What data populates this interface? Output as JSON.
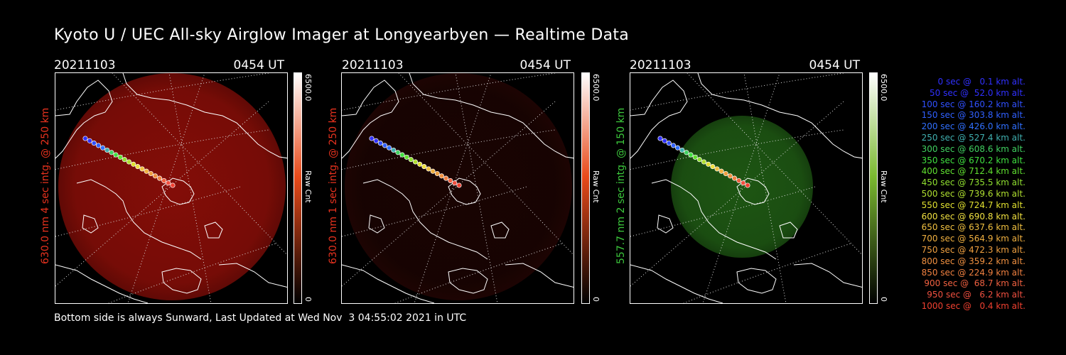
{
  "title": "Kyoto U / UEC All-sky Airglow Imager at Longyearbyen — Realtime Data",
  "footer": "Bottom side is always Sunward, Last Updated at Wed Nov  3 04:55:02 2021 in UTC",
  "panels": [
    {
      "date": "20211103",
      "time": "0454 UT",
      "ylabel": "630.0 nm 4 sec intg. @ 250 km",
      "ylabel_color": "#e8321e",
      "colorbar_max": "6500.0",
      "colorbar_min": "0",
      "colorbar_unit": "Raw Cnt",
      "colormap_top": "#ffffff",
      "colormap_mid": "#e84a1a",
      "colormap_bottom": "#000000",
      "disk_color": "#8a0e08",
      "disk_brightness": 0.95
    },
    {
      "date": "20211103",
      "time": "0454 UT",
      "ylabel": "630.0 nm 1 sec intg. @ 250 km",
      "ylabel_color": "#e8321e",
      "colorbar_max": "6500.0",
      "colorbar_min": "0",
      "colorbar_unit": "Raw Cnt",
      "colormap_top": "#ffffff",
      "colormap_mid": "#e84a1a",
      "colormap_bottom": "#000000",
      "disk_color": "#2a0604",
      "disk_brightness": 0.6
    },
    {
      "date": "20211103",
      "time": "0454 UT",
      "ylabel": "557.7 nm 2 sec intg. @ 150 km",
      "ylabel_color": "#3cc83c",
      "colorbar_max": "6500.0",
      "colorbar_min": "0",
      "colorbar_unit": "Raw Cnt",
      "colormap_top": "#ffffff",
      "colormap_mid": "#7ab830",
      "colormap_bottom": "#000000",
      "disk_color": "#1f5a14",
      "disk_brightness": 0.95
    }
  ],
  "legend": [
    {
      "text": "0 sec @   0.1 km alt.",
      "color": "#3030ff"
    },
    {
      "text": "50 sec @  52.0 km alt.",
      "color": "#3030ff"
    },
    {
      "text": "100 sec @ 160.2 km alt.",
      "color": "#3050ff"
    },
    {
      "text": "150 sec @ 303.8 km alt.",
      "color": "#3060ff"
    },
    {
      "text": "200 sec @ 426.0 km alt.",
      "color": "#3070ff"
    },
    {
      "text": "250 sec @ 527.4 km alt.",
      "color": "#40b0b0"
    },
    {
      "text": "300 sec @ 608.6 km alt.",
      "color": "#40d060"
    },
    {
      "text": "350 sec @ 670.2 km alt.",
      "color": "#40e040"
    },
    {
      "text": "400 sec @ 712.4 km alt.",
      "color": "#60e030"
    },
    {
      "text": "450 sec @ 735.5 km alt.",
      "color": "#90e030"
    },
    {
      "text": "500 sec @ 739.6 km alt.",
      "color": "#b0e030"
    },
    {
      "text": "550 sec @ 724.7 km alt.",
      "color": "#e0e030"
    },
    {
      "text": "600 sec @ 690.8 km alt.",
      "color": "#f0e040"
    },
    {
      "text": "650 sec @ 637.6 km alt.",
      "color": "#f0c040"
    },
    {
      "text": "700 sec @ 564.9 km alt.",
      "color": "#f0b040"
    },
    {
      "text": "750 sec @ 472.3 km alt.",
      "color": "#f0a040"
    },
    {
      "text": "800 sec @ 359.2 km alt.",
      "color": "#f09040"
    },
    {
      "text": "850 sec @ 224.9 km alt.",
      "color": "#f08040"
    },
    {
      "text": "900 sec @  68.7 km alt.",
      "color": "#f06040"
    },
    {
      "text": "950 sec @   6.2 km alt.",
      "color": "#f05040"
    },
    {
      "text": "1000 sec @   0.4 km alt.",
      "color": "#f04030"
    }
  ]
}
